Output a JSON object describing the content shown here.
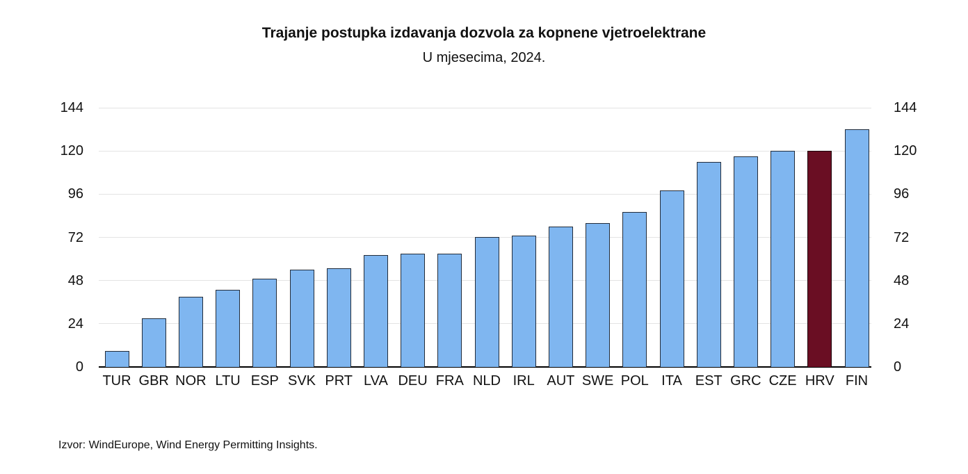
{
  "page": {
    "title": "Trajanje postupka izdavanja dozvola za kopnene vjetroelektrane",
    "subtitle": "U mjesecima, 2024.",
    "source": "Izvor: WindEurope, Wind Energy Permitting Insights."
  },
  "chart_data": {
    "type": "bar",
    "title": "Trajanje postupka izdavanja dozvola za kopnene vjetroelektrane",
    "subtitle": "U mjesecima, 2024.",
    "categories": [
      "TUR",
      "GBR",
      "NOR",
      "LTU",
      "ESP",
      "SVK",
      "PRT",
      "LVA",
      "DEU",
      "FRA",
      "NLD",
      "IRL",
      "AUT",
      "SWE",
      "POL",
      "ITA",
      "EST",
      "GRC",
      "CZE",
      "HRV",
      "FIN"
    ],
    "values": [
      9,
      27,
      39,
      43,
      49,
      54,
      55,
      62,
      63,
      63,
      72,
      73,
      78,
      80,
      86,
      98,
      114,
      117,
      120,
      120,
      132
    ],
    "units": "mjeseci",
    "highlighted_category": "HRV",
    "ylim": [
      0,
      144
    ],
    "yticks": [
      0,
      24,
      48,
      72,
      96,
      120,
      144
    ],
    "grid": true,
    "legend": "none",
    "y_axis_sides": "both",
    "colors": {
      "bar_fill": "#7fb6f0",
      "bar_border": "#222c3a",
      "highlight_fill": "#6a0e23",
      "highlight_border": "#1c0309",
      "gridline": "#e3e3e3",
      "axis": "#000000",
      "text": "#111111"
    },
    "source": "Izvor: WindEurope, Wind Energy Permitting Insights."
  }
}
